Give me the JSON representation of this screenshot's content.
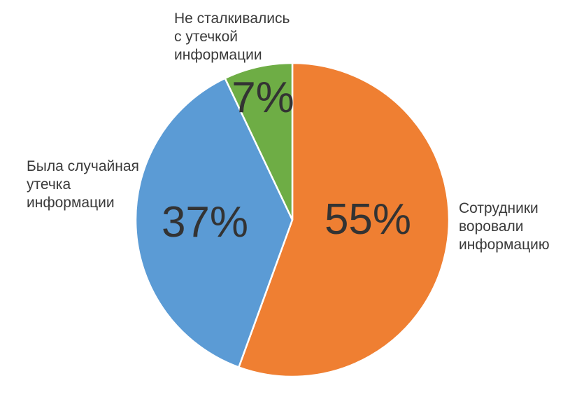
{
  "chart_data": {
    "type": "pie",
    "title": "",
    "slices": [
      {
        "label": "Сотрудники воровали информацию",
        "label_lines": [
          "Сотрудники",
          "воровали",
          "информацию"
        ],
        "value": 55,
        "value_label": "55%",
        "color": "#EF7F32"
      },
      {
        "label": "Была случайная утечка информации",
        "label_lines": [
          "Была случайная",
          "утечка",
          "информации"
        ],
        "value": 37,
        "value_label": "37%",
        "color": "#5B9BD5"
      },
      {
        "label": "Не сталкивались с утечкой информации",
        "label_lines": [
          "Не сталкивались",
          "с утечкой",
          "информации"
        ],
        "value": 7,
        "value_label": "7%",
        "color": "#6EAD45"
      }
    ],
    "start_angle": "12 o'clock",
    "direction": "clockwise",
    "legend": "none"
  }
}
